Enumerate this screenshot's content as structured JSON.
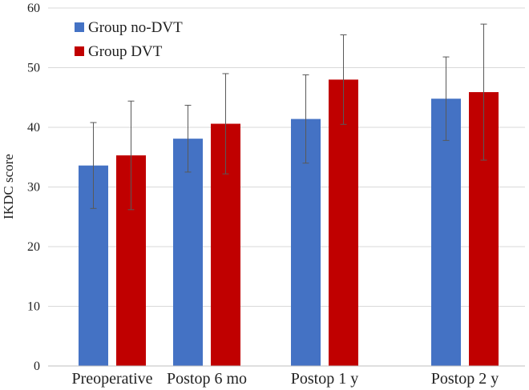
{
  "chart_data": {
    "type": "bar",
    "title": "",
    "xlabel": "",
    "ylabel": "IKDC score",
    "ylim": [
      0,
      60
    ],
    "yticks": [
      0,
      10,
      20,
      30,
      40,
      50,
      60
    ],
    "grid": true,
    "legend_position": "top-left",
    "categories": [
      "Preoperative",
      "Postop 6 mo",
      "Postop 1 y",
      "Postop 2 y"
    ],
    "series": [
      {
        "name": "Group no-DVT",
        "color": "#4472C4",
        "values": [
          33.6,
          38.1,
          41.4,
          44.8
        ],
        "error": [
          7.2,
          5.6,
          7.4,
          7.0
        ]
      },
      {
        "name": "Group DVT",
        "color": "#C00000",
        "values": [
          35.3,
          40.6,
          48.0,
          45.9
        ],
        "error": [
          9.1,
          8.4,
          7.5,
          11.4
        ]
      }
    ]
  }
}
